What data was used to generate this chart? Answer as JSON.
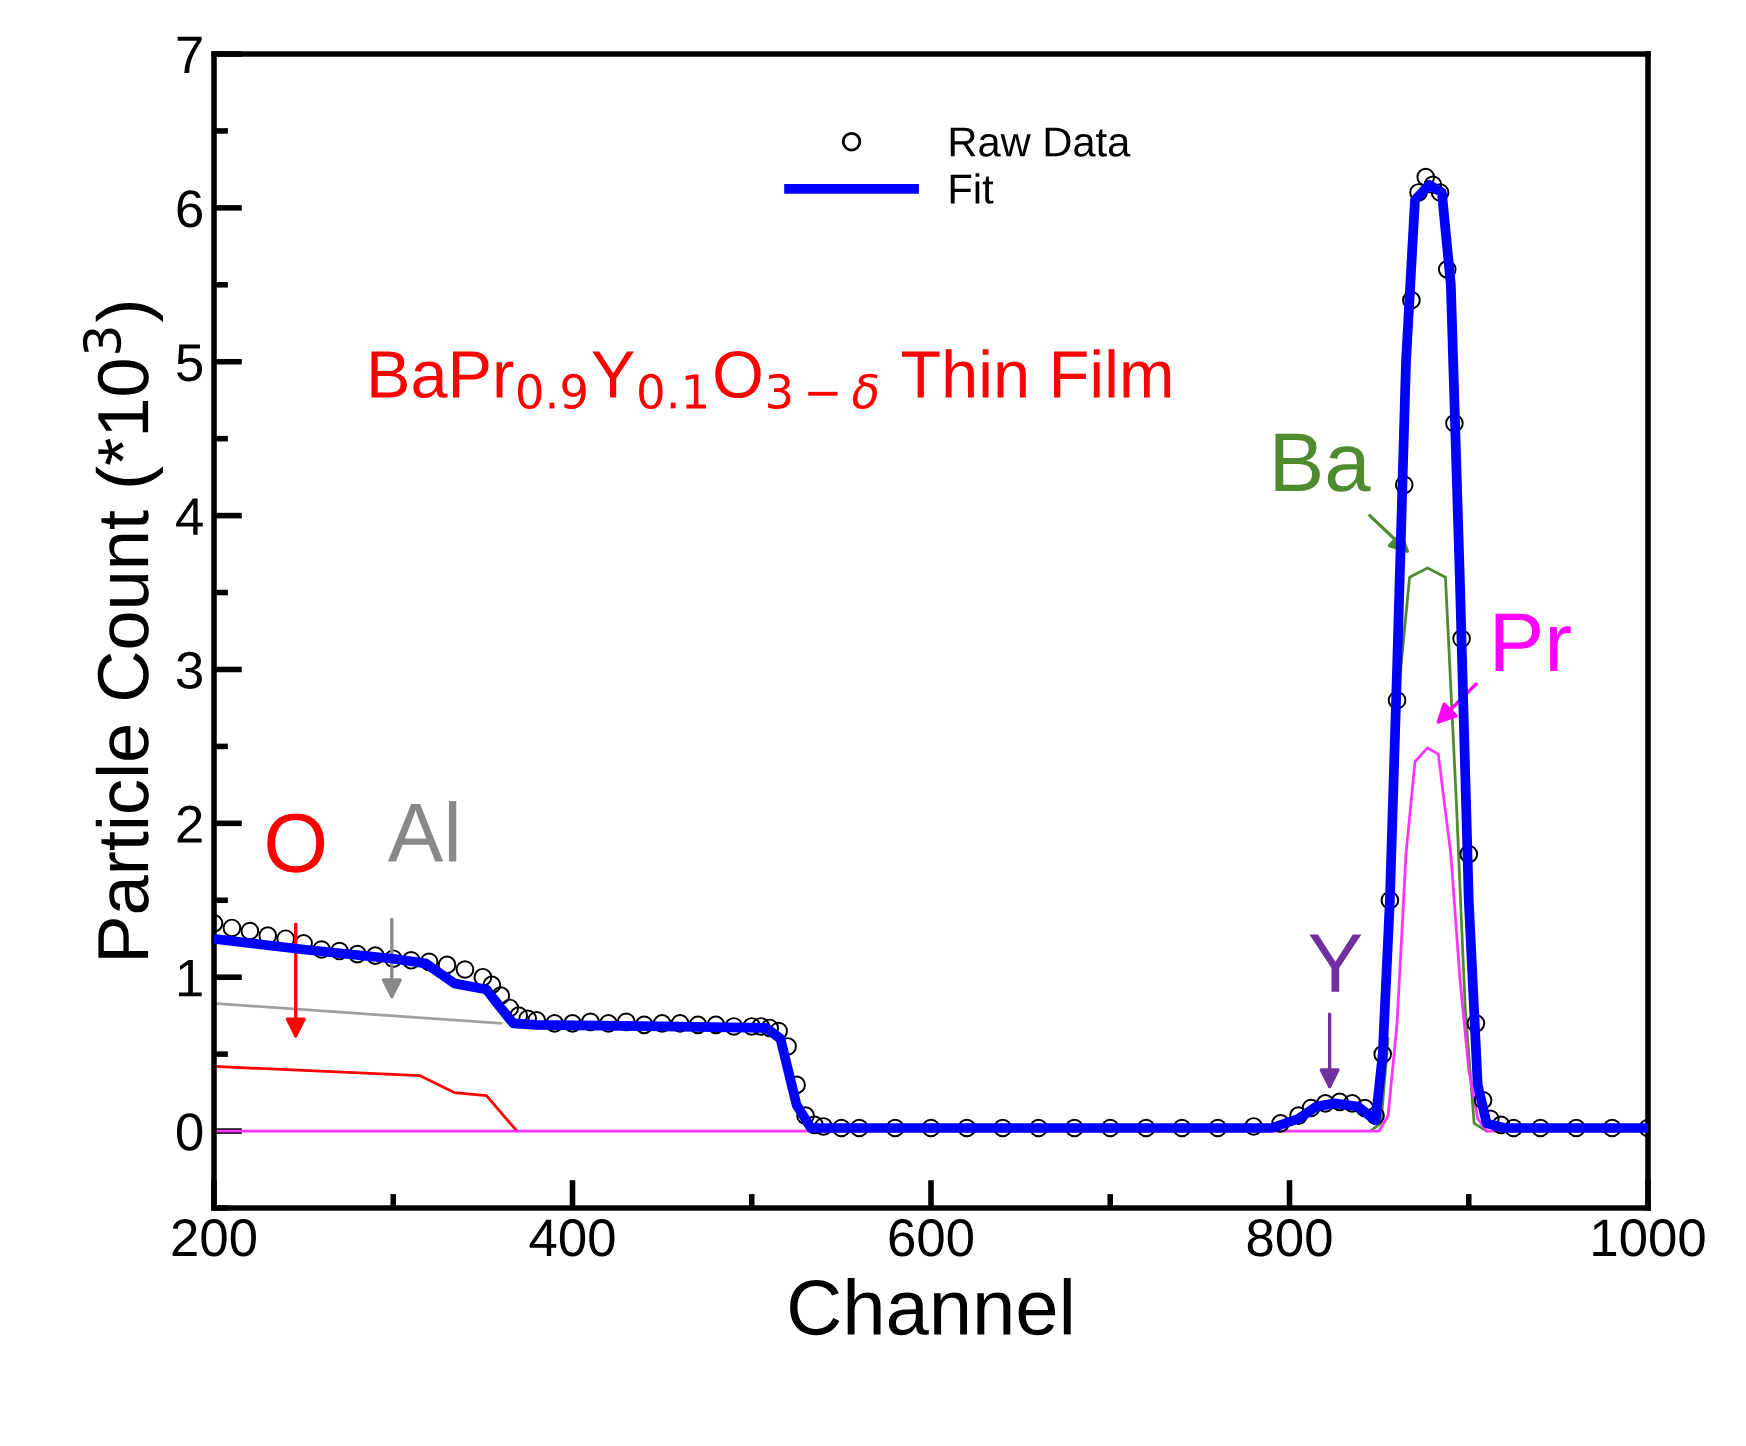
{
  "chart_data": {
    "type": "line",
    "xlabel": "Channel",
    "ylabel": "Particle Count (*10$^{3}$)",
    "xlim": [
      200,
      1000
    ],
    "ylim": [
      -0.5,
      7
    ],
    "xticks": [
      200,
      {
        "value": 300,
        "label": null
      },
      400,
      {
        "value": 500,
        "label": null
      },
      600,
      {
        "value": 700,
        "label": null
      },
      800,
      {
        "value": 900,
        "label": null
      },
      1000
    ],
    "yticks": [
      {
        "value": -0.5,
        "label": null
      },
      0,
      {
        "value": 0.5,
        "label": null
      },
      1,
      {
        "value": 1.5,
        "label": null
      },
      2,
      {
        "value": 2.5,
        "label": null
      },
      3,
      {
        "value": 3.5,
        "label": null
      },
      4,
      {
        "value": 4.5,
        "label": null
      },
      5,
      {
        "value": 5.5,
        "label": null
      },
      6,
      {
        "value": 6.5,
        "label": null
      },
      7
    ],
    "grid": false,
    "legend": "top",
    "series": [
      {
        "name": "Raw Data",
        "type": "scatter",
        "marker": "circle",
        "color": "#000000",
        "x": [
          200,
          210,
          220,
          230,
          240,
          250,
          260,
          270,
          280,
          290,
          300,
          310,
          320,
          330,
          340,
          350,
          355,
          360,
          365,
          370,
          375,
          380,
          390,
          400,
          410,
          420,
          430,
          440,
          450,
          460,
          470,
          480,
          490,
          500,
          505,
          510,
          515,
          520,
          525,
          530,
          535,
          540,
          550,
          560,
          580,
          600,
          620,
          640,
          660,
          680,
          700,
          720,
          740,
          760,
          780,
          795,
          805,
          812,
          820,
          828,
          835,
          842,
          848,
          852,
          856,
          860,
          864,
          868,
          872,
          876,
          880,
          884,
          888,
          892,
          896,
          900,
          904,
          908,
          912,
          918,
          925,
          940,
          960,
          980,
          1000
        ],
        "values": [
          1.35,
          1.32,
          1.3,
          1.27,
          1.25,
          1.22,
          1.18,
          1.17,
          1.15,
          1.14,
          1.12,
          1.11,
          1.1,
          1.08,
          1.05,
          1.0,
          0.95,
          0.88,
          0.8,
          0.75,
          0.73,
          0.72,
          0.7,
          0.7,
          0.71,
          0.7,
          0.71,
          0.69,
          0.7,
          0.7,
          0.69,
          0.69,
          0.68,
          0.68,
          0.68,
          0.67,
          0.65,
          0.55,
          0.3,
          0.1,
          0.04,
          0.03,
          0.02,
          0.02,
          0.02,
          0.02,
          0.02,
          0.02,
          0.02,
          0.02,
          0.02,
          0.02,
          0.02,
          0.02,
          0.03,
          0.05,
          0.1,
          0.15,
          0.18,
          0.19,
          0.18,
          0.15,
          0.1,
          0.5,
          1.5,
          2.8,
          4.2,
          5.4,
          6.1,
          6.2,
          6.15,
          6.1,
          5.6,
          4.6,
          3.2,
          1.8,
          0.7,
          0.2,
          0.08,
          0.04,
          0.02,
          0.02,
          0.02,
          0.02,
          0.02
        ]
      },
      {
        "name": "Fit",
        "color": "#0000ff",
        "x": [
          200,
          250,
          300,
          318,
          334,
          352,
          360,
          367,
          380,
          450,
          508,
          516,
          525,
          533,
          545,
          600,
          700,
          790,
          805,
          815,
          825,
          838,
          848,
          852,
          856,
          860,
          865,
          870,
          878,
          885,
          890,
          895,
          900,
          905,
          910,
          920,
          1000
        ],
        "values": [
          1.25,
          1.18,
          1.12,
          1.09,
          0.96,
          0.92,
          0.8,
          0.7,
          0.69,
          0.68,
          0.67,
          0.6,
          0.17,
          0.02,
          0.02,
          0.02,
          0.02,
          0.02,
          0.08,
          0.16,
          0.18,
          0.16,
          0.07,
          0.5,
          1.5,
          3.0,
          5.0,
          6.05,
          6.15,
          6.1,
          5.5,
          3.6,
          1.5,
          0.3,
          0.05,
          0.02,
          0.02
        ]
      },
      {
        "color": "#ff0000",
        "x": [
          200,
          315,
          334,
          352,
          369
        ],
        "values": [
          0.42,
          0.36,
          0.25,
          0.23,
          0
        ]
      },
      {
        "color": "#a0a0a0",
        "x": [
          200,
          360
        ],
        "values": [
          0.83,
          0.7
        ]
      },
      {
        "color": "#4e8a2e",
        "x": [
          845,
          851,
          855,
          858,
          862,
          867,
          877,
          887,
          893,
          898,
          903,
          910
        ],
        "values": [
          0,
          0.05,
          0.6,
          null,
          3.0,
          3.6,
          3.66,
          3.6,
          2.16,
          0.8,
          0.05,
          0
        ]
      },
      {
        "color": "#ff33ff",
        "x": [
          200,
          850,
          855,
          860,
          865,
          870,
          877,
          883,
          890,
          895,
          900,
          905,
          910,
          1000
        ],
        "values": [
          0,
          0,
          0.1,
          0.7,
          1.8,
          2.4,
          2.49,
          2.45,
          1.8,
          1.0,
          0.4,
          0.08,
          0,
          0
        ]
      }
    ],
    "annotations": [
      "BaPr$_{0.9}$Y$_{0.1}$O$_{3−δ}$ Thin Film",
      "O",
      "Al",
      "Y",
      "Ba",
      "Pr"
    ]
  }
}
